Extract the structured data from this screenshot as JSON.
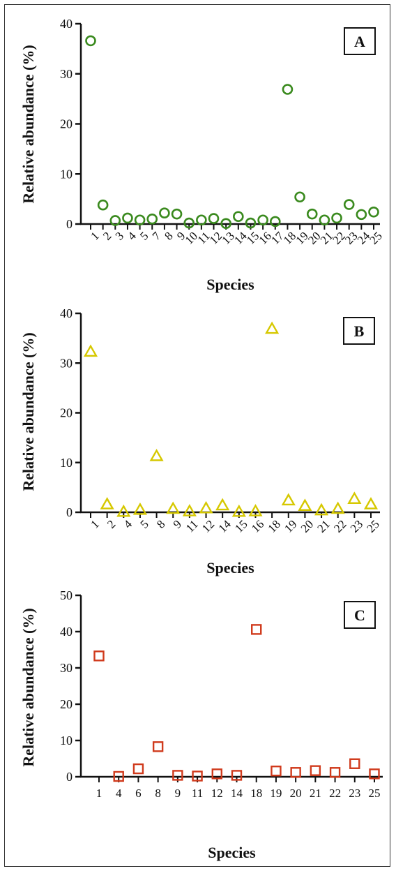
{
  "chart_data": [
    {
      "type": "scatter",
      "panel": "A",
      "marker": "circle",
      "color": "#3a8a1e",
      "xlabel": "Species",
      "ylabel": "Relative abundance (%)",
      "ylim": [
        0,
        40
      ],
      "yticks": [
        0,
        10,
        20,
        30,
        40
      ],
      "categories": [
        "1",
        "2",
        "3",
        "4",
        "5",
        "7",
        "8",
        "9",
        "10",
        "11",
        "12",
        "13",
        "14",
        "15",
        "16",
        "17",
        "18",
        "19",
        "20",
        "21",
        "22",
        "23",
        "24",
        "25"
      ],
      "values": [
        36.6,
        3.8,
        0.7,
        1.2,
        0.8,
        1.0,
        2.2,
        2.0,
        0.2,
        0.8,
        1.1,
        0.1,
        1.5,
        0.2,
        0.8,
        0.5,
        26.9,
        5.4,
        2.0,
        0.8,
        1.2,
        3.9,
        1.9,
        2.4
      ]
    },
    {
      "type": "scatter",
      "panel": "B",
      "marker": "triangle",
      "color": "#d6c800",
      "xlabel": "Species",
      "ylabel": "Relative abundance (%)",
      "ylim": [
        0,
        40
      ],
      "yticks": [
        0,
        10,
        20,
        30,
        40
      ],
      "categories": [
        "1",
        "2",
        "4",
        "5",
        "8",
        "9",
        "11",
        "12",
        "14",
        "15",
        "16",
        "18",
        "19",
        "20",
        "21",
        "22",
        "23",
        "25"
      ],
      "values": [
        32.3,
        1.6,
        0.1,
        0.5,
        11.3,
        0.7,
        0.2,
        0.8,
        1.4,
        0.1,
        0.2,
        36.9,
        2.4,
        1.3,
        0.4,
        0.7,
        2.7,
        1.6
      ]
    },
    {
      "type": "scatter",
      "panel": "C",
      "marker": "square",
      "color": "#d03a1c",
      "xlabel": "Species",
      "ylabel": "Relative abundance (%)",
      "ylim": [
        0,
        50
      ],
      "yticks": [
        0,
        10,
        20,
        30,
        40,
        50
      ],
      "categories": [
        "1",
        "4",
        "6",
        "8",
        "9",
        "11",
        "12",
        "14",
        "18",
        "19",
        "20",
        "21",
        "22",
        "23",
        "25"
      ],
      "values": [
        33.3,
        0.1,
        2.2,
        8.3,
        0.4,
        0.2,
        0.8,
        0.4,
        40.6,
        1.6,
        1.2,
        1.7,
        1.2,
        3.6,
        0.8
      ]
    }
  ]
}
